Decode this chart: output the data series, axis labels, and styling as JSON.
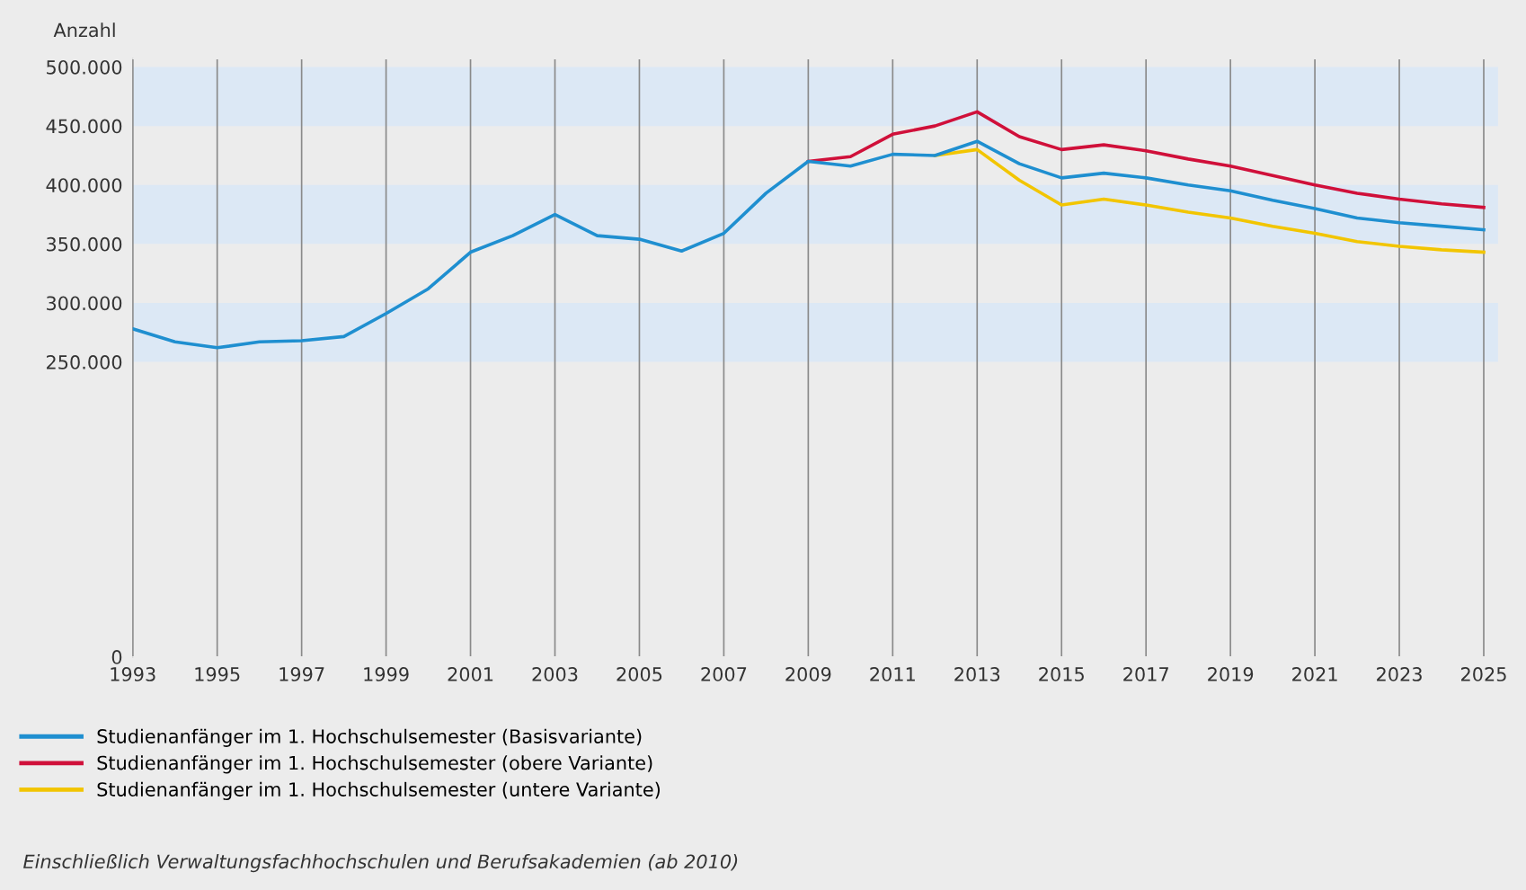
{
  "chart_data": {
    "type": "line",
    "ylabel": "Anzahl",
    "x": [
      1993,
      1994,
      1995,
      1996,
      1997,
      1998,
      1999,
      2000,
      2001,
      2002,
      2003,
      2004,
      2005,
      2006,
      2007,
      2008,
      2009,
      2010,
      2011,
      2012,
      2013,
      2014,
      2015,
      2016,
      2017,
      2018,
      2019,
      2020,
      2021,
      2022,
      2023,
      2024,
      2025
    ],
    "series": [
      {
        "name": "Studienanfänger im 1. Hochschulsemester (Basisvariante)",
        "color": "#1f8fd0",
        "values": [
          278000,
          267000,
          262000,
          267000,
          268000,
          271500,
          291000,
          312000,
          343000,
          357000,
          375000,
          357000,
          354000,
          344000,
          359000,
          393000,
          420000,
          416000,
          426000,
          425000,
          437000,
          418000,
          406000,
          410000,
          406000,
          400000,
          395000,
          387000,
          380000,
          372000,
          368000,
          365000,
          362000
        ]
      },
      {
        "name": "Studienanfänger im 1. Hochschulsemester (obere Variante)",
        "color": "#d0103a",
        "x": [
          2009,
          2010,
          2011,
          2012,
          2013,
          2014,
          2015,
          2016,
          2017,
          2018,
          2019,
          2020,
          2021,
          2022,
          2023,
          2024,
          2025
        ],
        "values": [
          420000,
          424000,
          443000,
          450000,
          462000,
          441000,
          430000,
          434000,
          429000,
          422000,
          416000,
          408000,
          400000,
          393000,
          388000,
          384000,
          381000
        ]
      },
      {
        "name": "Studienanfänger im 1. Hochschulsemester (untere Variante)",
        "color": "#f2c500",
        "x": [
          2012,
          2013,
          2014,
          2015,
          2016,
          2017,
          2018,
          2019,
          2020,
          2021,
          2022,
          2023,
          2024,
          2025
        ],
        "values": [
          425000,
          430000,
          404000,
          383000,
          388000,
          383000,
          377000,
          372000,
          365000,
          359000,
          352000,
          348000,
          345000,
          343000
        ]
      }
    ],
    "xlim": [
      1993,
      2025.35
    ],
    "xticks": [
      1993,
      1995,
      1997,
      1999,
      2001,
      2003,
      2005,
      2007,
      2009,
      2011,
      2013,
      2015,
      2017,
      2019,
      2021,
      2023,
      2025
    ],
    "ylim": [
      0,
      507000
    ],
    "yticks": [
      0,
      {
        "value": 250000,
        "label": "250.000"
      },
      {
        "value": 300000,
        "label": "300.000"
      },
      {
        "value": 350000,
        "label": "350.000"
      },
      {
        "value": 400000,
        "label": "400.000"
      },
      {
        "value": 450000,
        "label": "450.000"
      },
      {
        "value": 500000,
        "label": "500.000"
      }
    ],
    "bands": [
      {
        "axis": "y",
        "from": 250000,
        "to": 300000,
        "color": "#dce8f5"
      },
      {
        "axis": "y",
        "from": 350000,
        "to": 400000,
        "color": "#dce8f5"
      },
      {
        "axis": "y",
        "from": 450000,
        "to": 500000,
        "color": "#dce8f5"
      }
    ],
    "grid": "x",
    "legend": "bottom left",
    "line_style": "solid",
    "annotations": [
      "Einschließlich Verwaltungsfachhochschulen und Berufsakademien (ab 2010)"
    ]
  }
}
